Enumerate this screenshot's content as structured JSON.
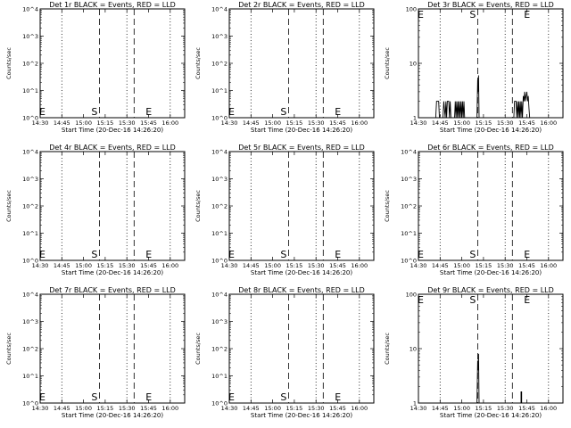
{
  "chart_data": [
    {
      "type": "line",
      "title": "Det 1r BLACK = Events, RED = LLD",
      "xlabel": "Start Time (20-Dec-16 14:26:20)",
      "ylabel": "Counts/sec",
      "yscale": "log",
      "ylim": [
        1,
        10000
      ],
      "ytick_labels": [
        "10^0",
        "10^1",
        "10^2",
        "10^3",
        "10^4"
      ],
      "xlim": [
        "14:30",
        "16:10"
      ],
      "xtick_labels": [
        "14:30",
        "14:45",
        "15:00",
        "15:15",
        "15:30",
        "15:45",
        "16:00"
      ],
      "dotted_lines": [
        "14:45",
        "15:30",
        "16:00"
      ],
      "dashed_lines": [
        "15:11",
        "15:35"
      ],
      "markers": [
        {
          "label": "S",
          "x": "15:11"
        },
        {
          "label": "E",
          "x": "15:43"
        }
      ],
      "segments": []
    },
    {
      "type": "line",
      "title": "Det 2r BLACK = Events, RED = LLD",
      "xlabel": "Start Time (20-Dec-16 14:26:20)",
      "ylabel": "Counts/sec",
      "yscale": "log",
      "ylim": [
        1,
        10000
      ],
      "ytick_labels": [
        "10^0",
        "10^1",
        "10^2",
        "10^3",
        "10^4"
      ],
      "xlim": [
        "14:30",
        "16:10"
      ],
      "xtick_labels": [
        "14:30",
        "14:45",
        "15:00",
        "15:15",
        "15:30",
        "15:45",
        "16:00"
      ],
      "dotted_lines": [
        "14:45",
        "15:30",
        "16:00"
      ],
      "dashed_lines": [
        "15:11",
        "15:35"
      ],
      "markers": [
        {
          "label": "S",
          "x": "15:11"
        },
        {
          "label": "E",
          "x": "15:43"
        }
      ],
      "segments": []
    },
    {
      "type": "line",
      "title": "Det 3r BLACK = Events, RED = LLD",
      "xlabel": "Start Time (20-Dec-16 14:26:20)",
      "ylabel": "Counts/sec",
      "yscale": "log",
      "ylim": [
        1,
        100
      ],
      "ytick_labels": [
        "1",
        "10",
        "100"
      ],
      "xlim": [
        "14:30",
        "16:10"
      ],
      "xtick_labels": [
        "14:30",
        "14:45",
        "15:00",
        "15:15",
        "15:30",
        "15:45",
        "16:00"
      ],
      "dotted_lines": [
        "14:45",
        "15:30",
        "16:00"
      ],
      "dashed_lines": [
        "15:11",
        "15:35"
      ],
      "markers": [
        {
          "label": "S",
          "x": "15:11"
        },
        {
          "label": "E",
          "x": "15:43"
        }
      ],
      "segments": [
        {
          "x": [
            "14:42",
            "14:42.5",
            "14:44",
            "14:44.5"
          ],
          "y": [
            1,
            2,
            2,
            1
          ]
        },
        {
          "x": [
            "14:47",
            "14:47.5",
            "14:48.5",
            "14:49",
            "14:49.5",
            "14:50",
            "14:51",
            "14:51.5",
            "14:52",
            "14:52.5"
          ],
          "y": [
            1,
            2,
            1,
            2,
            1,
            2,
            2,
            1,
            2,
            1
          ]
        },
        {
          "x": [
            "14:55",
            "14:55.5",
            "14:56",
            "14:56.5",
            "14:57",
            "14:57.5",
            "14:58",
            "14:58.5",
            "14:59",
            "14:59.5",
            "15:00",
            "15:00.5",
            "15:01",
            "15:01.5",
            "15:02"
          ],
          "y": [
            1,
            2,
            1,
            2,
            1,
            2,
            1,
            2,
            1,
            2,
            1,
            2,
            1,
            2,
            1
          ]
        },
        {
          "x": [
            "15:10.5",
            "15:11",
            "15:11.3",
            "15:11.6",
            "15:12"
          ],
          "y": [
            1,
            5,
            3,
            6,
            1
          ]
        },
        {
          "x": [
            "15:36",
            "15:36.5",
            "15:37.5",
            "15:38",
            "15:38.5",
            "15:39",
            "15:39.5",
            "15:40",
            "15:40.5",
            "15:41",
            "15:41.5",
            "15:42"
          ],
          "y": [
            1,
            2,
            2,
            1,
            2,
            1,
            2,
            1,
            2,
            1,
            2,
            1
          ]
        },
        {
          "x": [
            "15:42",
            "15:42.5",
            "15:43",
            "15:43.5",
            "15:44",
            "15:44.5",
            "15:45",
            "15:45.5",
            "15:46",
            "15:46.5",
            "15:47"
          ],
          "y": [
            1,
            2.5,
            2,
            3,
            2,
            2.5,
            3,
            2,
            2.5,
            1.5,
            1
          ]
        }
      ]
    },
    {
      "type": "line",
      "title": "Det 4r BLACK = Events, RED = LLD",
      "xlabel": "Start Time (20-Dec-16 14:26:20)",
      "ylabel": "Counts/sec",
      "yscale": "log",
      "ylim": [
        1,
        10000
      ],
      "ytick_labels": [
        "10^0",
        "10^1",
        "10^2",
        "10^3",
        "10^4"
      ],
      "xlim": [
        "14:30",
        "16:10"
      ],
      "xtick_labels": [
        "14:30",
        "14:45",
        "15:00",
        "15:15",
        "15:30",
        "15:45",
        "16:00"
      ],
      "dotted_lines": [
        "14:45",
        "15:30",
        "16:00"
      ],
      "dashed_lines": [
        "15:11",
        "15:35"
      ],
      "markers": [
        {
          "label": "S",
          "x": "15:11"
        },
        {
          "label": "E",
          "x": "15:43"
        }
      ],
      "segments": []
    },
    {
      "type": "line",
      "title": "Det 5r BLACK = Events, RED = LLD",
      "xlabel": "Start Time (20-Dec-16 14:26:20)",
      "ylabel": "Counts/sec",
      "yscale": "log",
      "ylim": [
        1,
        10000
      ],
      "ytick_labels": [
        "10^0",
        "10^1",
        "10^2",
        "10^3",
        "10^4"
      ],
      "xlim": [
        "14:30",
        "16:10"
      ],
      "xtick_labels": [
        "14:30",
        "14:45",
        "15:00",
        "15:15",
        "15:30",
        "15:45",
        "16:00"
      ],
      "dotted_lines": [
        "14:45",
        "15:30",
        "16:00"
      ],
      "dashed_lines": [
        "15:11",
        "15:35"
      ],
      "markers": [
        {
          "label": "S",
          "x": "15:11"
        },
        {
          "label": "E",
          "x": "15:43"
        }
      ],
      "segments": []
    },
    {
      "type": "line",
      "title": "Det 6r BLACK = Events, RED = LLD",
      "xlabel": "Start Time (20-Dec-16 14:26:20)",
      "ylabel": "Counts/sec",
      "yscale": "log",
      "ylim": [
        1,
        10000
      ],
      "ytick_labels": [
        "10^0",
        "10^1",
        "10^2",
        "10^3",
        "10^4"
      ],
      "xlim": [
        "14:30",
        "16:10"
      ],
      "xtick_labels": [
        "14:30",
        "14:45",
        "15:00",
        "15:15",
        "15:30",
        "15:45",
        "16:00"
      ],
      "dotted_lines": [
        "14:45",
        "15:30",
        "16:00"
      ],
      "dashed_lines": [
        "15:11",
        "15:35"
      ],
      "markers": [
        {
          "label": "S",
          "x": "15:11"
        },
        {
          "label": "E",
          "x": "15:43"
        }
      ],
      "segments": []
    },
    {
      "type": "line",
      "title": "Det 7r BLACK = Events, RED = LLD",
      "xlabel": "Start Time (20-Dec-16 14:26:20)",
      "ylabel": "Counts/sec",
      "yscale": "log",
      "ylim": [
        1,
        10000
      ],
      "ytick_labels": [
        "10^0",
        "10^1",
        "10^2",
        "10^3",
        "10^4"
      ],
      "xlim": [
        "14:30",
        "16:10"
      ],
      "xtick_labels": [
        "14:30",
        "14:45",
        "15:00",
        "15:15",
        "15:30",
        "15:45",
        "16:00"
      ],
      "dotted_lines": [
        "14:45",
        "15:30",
        "16:00"
      ],
      "dashed_lines": [
        "15:11",
        "15:35"
      ],
      "markers": [
        {
          "label": "S",
          "x": "15:11"
        },
        {
          "label": "E",
          "x": "15:43"
        }
      ],
      "segments": []
    },
    {
      "type": "line",
      "title": "Det 8r BLACK = Events, RED = LLD",
      "xlabel": "Start Time (20-Dec-16 14:26:20)",
      "ylabel": "Counts/sec",
      "yscale": "log",
      "ylim": [
        1,
        10000
      ],
      "ytick_labels": [
        "10^0",
        "10^1",
        "10^2",
        "10^3",
        "10^4"
      ],
      "xlim": [
        "14:30",
        "16:10"
      ],
      "xtick_labels": [
        "14:30",
        "14:45",
        "15:00",
        "15:15",
        "15:30",
        "15:45",
        "16:00"
      ],
      "dotted_lines": [
        "14:45",
        "15:30",
        "16:00"
      ],
      "dashed_lines": [
        "15:11",
        "15:35"
      ],
      "markers": [
        {
          "label": "S",
          "x": "15:11"
        },
        {
          "label": "E",
          "x": "15:43"
        }
      ],
      "segments": []
    },
    {
      "type": "line",
      "title": "Det 9r BLACK = Events, RED = LLD",
      "xlabel": "Start Time (20-Dec-16 14:26:20)",
      "ylabel": "Counts/sec",
      "yscale": "log",
      "ylim": [
        1,
        100
      ],
      "ytick_labels": [
        "1",
        "10",
        "100"
      ],
      "xlim": [
        "14:30",
        "16:10"
      ],
      "xtick_labels": [
        "14:30",
        "14:45",
        "15:00",
        "15:15",
        "15:30",
        "15:45",
        "16:00"
      ],
      "dotted_lines": [
        "14:45",
        "15:30",
        "16:00"
      ],
      "dashed_lines": [
        "15:11",
        "15:35"
      ],
      "markers": [
        {
          "label": "S",
          "x": "15:11"
        },
        {
          "label": "E",
          "x": "15:43"
        }
      ],
      "segments": [
        {
          "x": [
            "15:10.5",
            "15:11",
            "15:11.3",
            "15:11.6",
            "15:12"
          ],
          "y": [
            1,
            6,
            4,
            8,
            1
          ]
        },
        {
          "x": [
            "15:41",
            "15:41",
            "15:41.4",
            "15:41.4"
          ],
          "y": [
            1,
            1.6,
            1.6,
            1
          ]
        }
      ]
    }
  ]
}
